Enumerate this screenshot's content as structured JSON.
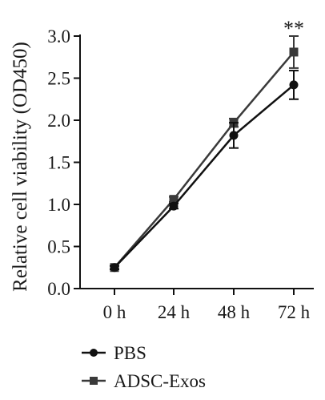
{
  "chart_data": {
    "type": "line",
    "title": "",
    "xlabel": "",
    "ylabel": "Relative cell viability (OD450)",
    "categories": [
      "0 h",
      "24 h",
      "48 h",
      "72 h"
    ],
    "yticks": [
      "0.0",
      "0.5",
      "1.0",
      "1.5",
      "2.0",
      "2.5",
      "3.0"
    ],
    "ylim": [
      0,
      3.0
    ],
    "grid": false,
    "legend_position": "bottom",
    "series": [
      {
        "name": "PBS",
        "marker": "circle",
        "color": "#111111",
        "values": [
          0.25,
          0.98,
          1.82,
          2.42
        ],
        "errors": [
          0.02,
          0.03,
          0.15,
          0.17
        ]
      },
      {
        "name": "ADSC-Exos",
        "marker": "square",
        "color": "#3a3a3a",
        "values": [
          0.25,
          1.06,
          1.97,
          2.81
        ],
        "errors": [
          0.02,
          0.03,
          0.05,
          0.19
        ]
      }
    ],
    "annotations": [
      {
        "text": "**",
        "category": "72 h"
      }
    ]
  }
}
